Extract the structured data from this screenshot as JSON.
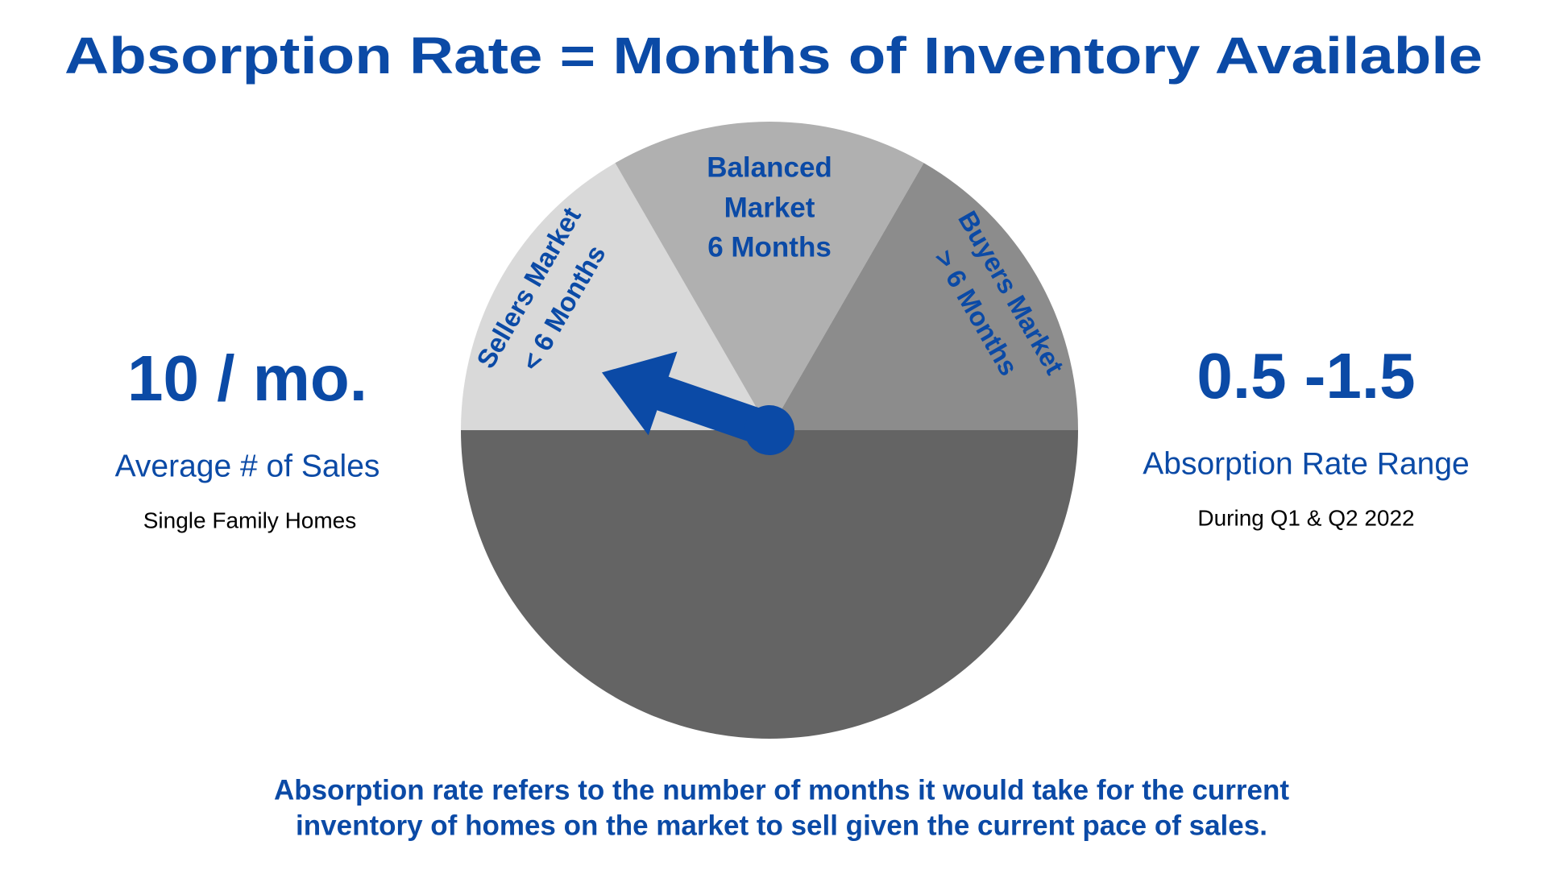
{
  "title": "Absorption Rate = Months of Inventory Available",
  "gauge": {
    "segments": [
      {
        "lines": [
          "Sellers Market",
          "< 6 Months"
        ]
      },
      {
        "lines": [
          "Balanced",
          "Market",
          "6 Months"
        ]
      },
      {
        "lines": [
          "Buyers Market",
          "> 6 Months"
        ]
      }
    ]
  },
  "left": {
    "value": "10 / mo.",
    "label": "Average # of Sales",
    "note": "Single Family Homes"
  },
  "right": {
    "value": "0.5 -1.5",
    "label": "Absorption Rate Range",
    "note": "During Q1 & Q2 2022"
  },
  "footer": [
    "Absorption rate refers to the number of months it would take for the current",
    "inventory of homes on the market to sell given the current pace of sales."
  ]
}
